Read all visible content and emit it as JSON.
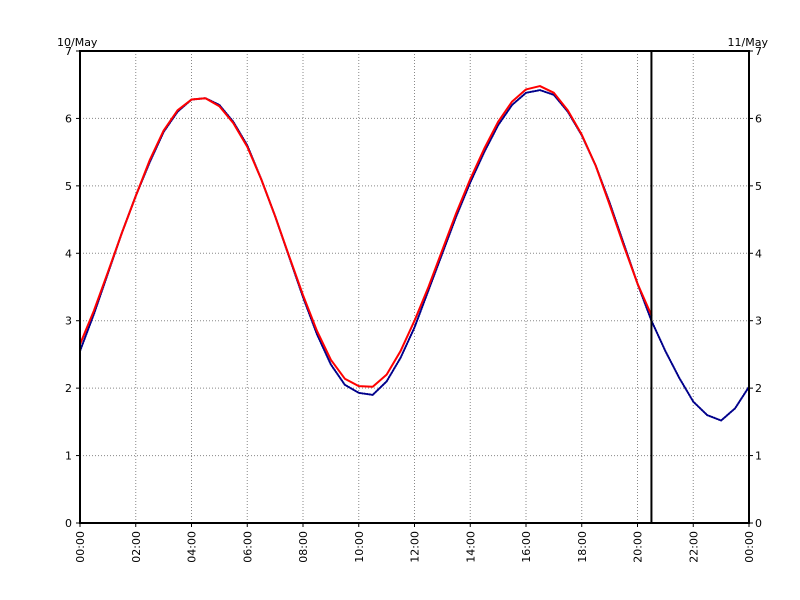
{
  "chart_data": {
    "type": "line",
    "title": "",
    "xlabel": "",
    "ylabel": "",
    "date_left": "10/May",
    "date_right": "11/May",
    "x_tick_labels": [
      "00:00",
      "02:00",
      "04:00",
      "06:00",
      "08:00",
      "10:00",
      "12:00",
      "14:00",
      "16:00",
      "18:00",
      "20:00",
      "22:00",
      "00:00"
    ],
    "y_tick_labels": [
      "0",
      "1",
      "2",
      "3",
      "4",
      "5",
      "6",
      "7"
    ],
    "xlim_hours": [
      0,
      24
    ],
    "ylim": [
      0,
      7
    ],
    "grid": true,
    "now_marker_hour": 20.5,
    "series": [
      {
        "color": "#00008b",
        "style": "dotted",
        "hours": [
          0,
          0.5,
          1,
          1.5,
          2,
          2.5,
          3,
          3.5,
          4,
          4.5,
          5,
          5.5,
          6,
          6.5,
          7,
          7.5,
          8,
          8.5,
          9,
          9.5,
          10,
          10.5,
          11,
          11.5,
          12,
          12.5,
          13,
          13.5,
          14,
          14.5,
          15,
          15.5,
          16,
          16.5,
          17,
          17.5,
          18,
          18.5,
          19,
          19.5,
          20,
          20.5,
          21,
          21.5,
          22,
          22.5,
          23,
          23.5,
          24
        ],
        "values": [
          2.55,
          3.1,
          3.7,
          4.3,
          4.85,
          5.35,
          5.8,
          6.1,
          6.28,
          6.3,
          6.2,
          5.95,
          5.6,
          5.1,
          4.55,
          3.95,
          3.35,
          2.8,
          2.35,
          2.05,
          1.93,
          1.9,
          2.1,
          2.45,
          2.9,
          3.45,
          4.0,
          4.55,
          5.05,
          5.5,
          5.9,
          6.2,
          6.38,
          6.42,
          6.35,
          6.1,
          5.75,
          5.3,
          4.75,
          4.15,
          3.55,
          3.0,
          2.55,
          2.15,
          1.8,
          1.6,
          1.52,
          1.7,
          2.02
        ]
      },
      {
        "color": "#ff0000",
        "style": "solid",
        "hours": [
          0,
          0.5,
          1,
          1.5,
          2,
          2.5,
          3,
          3.5,
          4,
          4.5,
          5,
          5.5,
          6,
          6.5,
          7,
          7.5,
          8,
          8.5,
          9,
          9.5,
          10,
          10.5,
          11,
          11.5,
          12,
          12.5,
          13,
          13.5,
          14,
          14.5,
          15,
          15.5,
          16,
          16.5,
          17,
          17.5,
          18,
          18.5,
          19,
          19.5,
          20,
          20.5
        ],
        "values": [
          2.65,
          3.15,
          3.72,
          4.3,
          4.85,
          5.38,
          5.82,
          6.12,
          6.28,
          6.3,
          6.18,
          5.93,
          5.58,
          5.1,
          4.55,
          3.96,
          3.38,
          2.85,
          2.42,
          2.14,
          2.03,
          2.02,
          2.2,
          2.55,
          3.0,
          3.5,
          4.05,
          4.6,
          5.1,
          5.55,
          5.95,
          6.25,
          6.43,
          6.48,
          6.38,
          6.12,
          5.76,
          5.3,
          4.72,
          4.12,
          3.55,
          3.08
        ]
      }
    ]
  }
}
